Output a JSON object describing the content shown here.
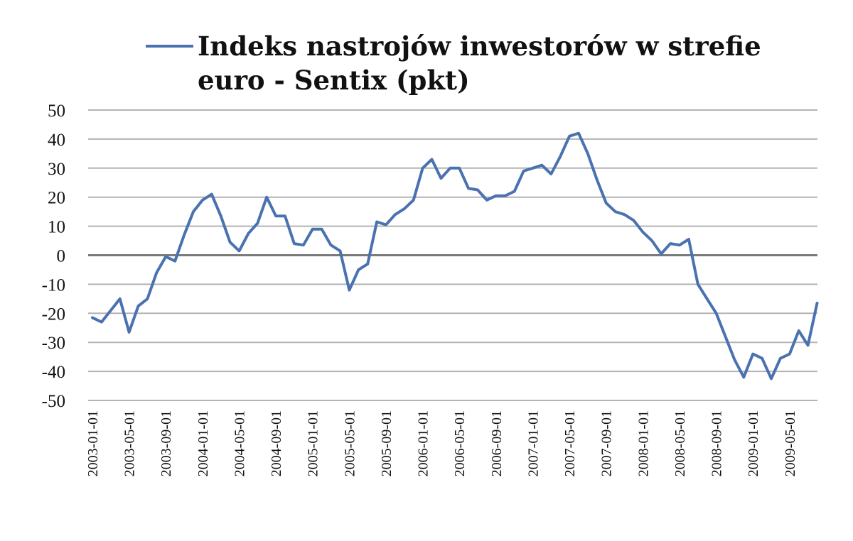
{
  "chart_data": {
    "type": "line",
    "title": "",
    "xlabel": "",
    "ylabel": "",
    "ylim": [
      -50,
      50
    ],
    "y_ticks": [
      50,
      40,
      30,
      20,
      10,
      0,
      -10,
      -20,
      -30,
      -40,
      -50
    ],
    "grid": "horizontal",
    "legend_position": "top",
    "legend_lines": [
      "Indeks nastrojów inwestorów w strefie",
      "euro - Sentix (pkt)"
    ],
    "x_tick_labels": [
      "2003-01-01",
      "2003-05-01",
      "2003-09-01",
      "2004-01-01",
      "2004-05-01",
      "2004-09-01",
      "2005-01-01",
      "2005-05-01",
      "2005-09-01",
      "2006-01-01",
      "2006-05-01",
      "2006-09-01",
      "2007-01-01",
      "2007-05-01",
      "2007-09-01",
      "2008-01-01",
      "2008-05-01",
      "2008-09-01",
      "2009-01-01",
      "2009-05-01"
    ],
    "colors": {
      "series": "#4a72b0",
      "grid": "#b3b3b3",
      "zero_line": "#7a7a7a"
    },
    "series": [
      {
        "name": "Indeks nastrojów inwestorów w strefie euro - Sentix (pkt)",
        "x": [
          "2003-01-01",
          "2003-02-01",
          "2003-03-01",
          "2003-04-01",
          "2003-05-01",
          "2003-06-01",
          "2003-07-01",
          "2003-08-01",
          "2003-09-01",
          "2003-10-01",
          "2003-11-01",
          "2003-12-01",
          "2004-01-01",
          "2004-02-01",
          "2004-03-01",
          "2004-04-01",
          "2004-05-01",
          "2004-06-01",
          "2004-07-01",
          "2004-08-01",
          "2004-09-01",
          "2004-10-01",
          "2004-11-01",
          "2004-12-01",
          "2005-01-01",
          "2005-02-01",
          "2005-03-01",
          "2005-04-01",
          "2005-05-01",
          "2005-06-01",
          "2005-07-01",
          "2005-08-01",
          "2005-09-01",
          "2005-10-01",
          "2005-11-01",
          "2005-12-01",
          "2006-01-01",
          "2006-02-01",
          "2006-03-01",
          "2006-04-01",
          "2006-05-01",
          "2006-06-01",
          "2006-07-01",
          "2006-08-01",
          "2006-09-01",
          "2006-10-01",
          "2006-11-01",
          "2006-12-01",
          "2007-01-01",
          "2007-02-01",
          "2007-03-01",
          "2007-04-01",
          "2007-05-01",
          "2007-06-01",
          "2007-07-01",
          "2007-08-01",
          "2007-09-01",
          "2007-10-01",
          "2007-11-01",
          "2007-12-01",
          "2008-01-01",
          "2008-02-01",
          "2008-03-01",
          "2008-04-01",
          "2008-05-01",
          "2008-06-01",
          "2008-07-01",
          "2008-08-01",
          "2008-09-01",
          "2008-10-01",
          "2008-11-01",
          "2008-12-01",
          "2009-01-01",
          "2009-02-01",
          "2009-03-01",
          "2009-04-01",
          "2009-05-01",
          "2009-06-01",
          "2009-07-01",
          "2009-08-01"
        ],
        "values": [
          -21.5,
          -23,
          -19,
          -15,
          -26.5,
          -17.5,
          -15,
          -6,
          -0.5,
          -2,
          7,
          15,
          19,
          21,
          13.5,
          4.5,
          1.5,
          7.5,
          11,
          20,
          13.5,
          13.5,
          4,
          3.5,
          9,
          9,
          3.5,
          1.5,
          -12,
          -5,
          -3,
          11.5,
          10.5,
          14,
          16,
          19,
          30,
          33,
          26.5,
          30,
          30,
          23,
          22.5,
          19,
          20.5,
          20.5,
          22,
          29,
          30,
          31,
          28,
          34,
          41,
          42,
          35,
          26,
          18,
          15,
          14,
          12,
          8,
          5,
          0.5,
          4,
          3.5,
          5.5,
          -10,
          -15,
          -20,
          -28,
          -36,
          -42,
          -34,
          -35.5,
          -42.5,
          -35.5,
          -34,
          -26,
          -31,
          -16.5
        ]
      }
    ]
  }
}
